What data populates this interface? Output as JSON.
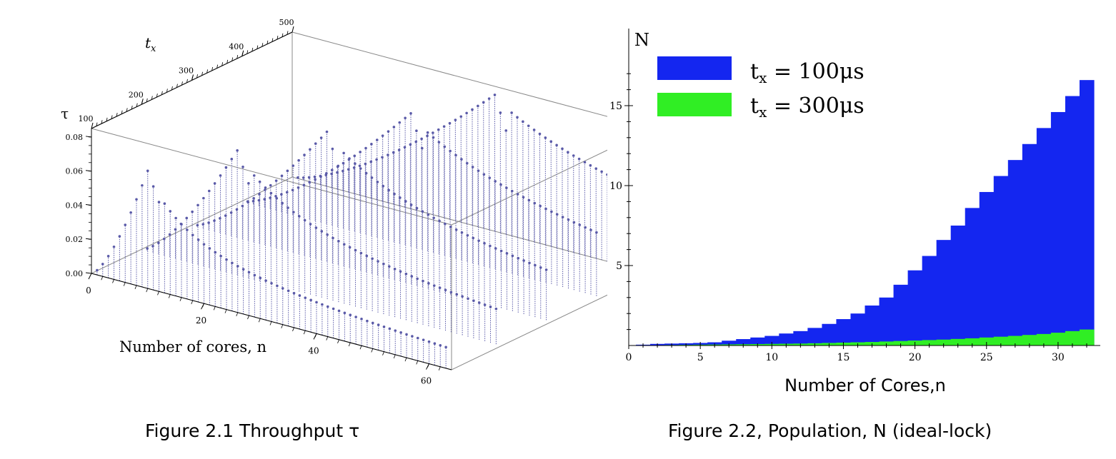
{
  "figure1": {
    "caption": "Figure 2.1 Throughput τ",
    "chart_data": {
      "type": "scatter",
      "variant": "3d-stem",
      "xlabel": "Number of cores, n",
      "ylabel": "t",
      "ylabel_subscript": "x",
      "zlabel": "τ",
      "x_ticks": [
        "0",
        "20",
        "40",
        "60"
      ],
      "y_ticks": [
        "100",
        "200",
        "300",
        "400",
        "500"
      ],
      "z_ticks": [
        "0.00",
        "0.02",
        "0.04",
        "0.06",
        "0.08"
      ],
      "xlim": [
        0,
        64
      ],
      "ylim": [
        100,
        500
      ],
      "zlim": [
        0,
        0.085
      ],
      "marker_color": "#5a5aa8",
      "series": [
        {
          "tx": 100,
          "peak_n": 10,
          "peak_tau": 0.069
        },
        {
          "tx": 200,
          "peak_n": 17,
          "peak_tau": 0.073
        },
        {
          "tx": 300,
          "peak_n": 24,
          "peak_tau": 0.076
        },
        {
          "tx": 400,
          "peak_n": 30,
          "peak_tau": 0.078
        },
        {
          "tx": 500,
          "peak_n": 36,
          "peak_tau": 0.08
        }
      ]
    }
  },
  "figure2": {
    "caption": "Figure 2.2, Population, N (ideal-lock)",
    "chart_data": {
      "type": "bar",
      "title_axis_label": "N",
      "xlabel": "Number of Cores,n",
      "ylabel": "N",
      "x_ticks": [
        0,
        5,
        10,
        15,
        20,
        25,
        30
      ],
      "y_ticks": [
        5,
        10,
        15
      ],
      "xlim": [
        0,
        33
      ],
      "ylim": [
        0,
        18
      ],
      "legend_position": "top-left",
      "series": [
        {
          "name_main": "t",
          "name_sub": "x",
          "name_rest": " = 100μs",
          "color": "#1426f0",
          "x": [
            1,
            2,
            3,
            4,
            5,
            6,
            7,
            8,
            9,
            10,
            11,
            12,
            13,
            14,
            15,
            16,
            17,
            18,
            19,
            20,
            21,
            22,
            23,
            24,
            25,
            26,
            27,
            28,
            29,
            30,
            31,
            32
          ],
          "values": [
            0.05,
            0.1,
            0.12,
            0.14,
            0.16,
            0.2,
            0.3,
            0.4,
            0.5,
            0.6,
            0.75,
            0.9,
            1.1,
            1.35,
            1.65,
            2.0,
            2.5,
            3.0,
            3.8,
            4.7,
            5.6,
            6.6,
            7.5,
            8.6,
            9.6,
            10.6,
            11.6,
            12.6,
            13.6,
            14.6,
            15.6,
            16.6
          ]
        },
        {
          "name_main": "t",
          "name_sub": "x",
          "name_rest": " = 300μs",
          "color": "#30ee24",
          "x": [
            1,
            2,
            3,
            4,
            5,
            6,
            7,
            8,
            9,
            10,
            11,
            12,
            13,
            14,
            15,
            16,
            17,
            18,
            19,
            20,
            21,
            22,
            23,
            24,
            25,
            26,
            27,
            28,
            29,
            30,
            31,
            32
          ],
          "values": [
            0.01,
            0.02,
            0.03,
            0.04,
            0.05,
            0.06,
            0.07,
            0.08,
            0.09,
            0.1,
            0.11,
            0.12,
            0.14,
            0.16,
            0.18,
            0.2,
            0.22,
            0.25,
            0.28,
            0.31,
            0.34,
            0.37,
            0.41,
            0.45,
            0.5,
            0.55,
            0.6,
            0.66,
            0.72,
            0.8,
            0.9,
            1.0
          ]
        }
      ]
    }
  }
}
